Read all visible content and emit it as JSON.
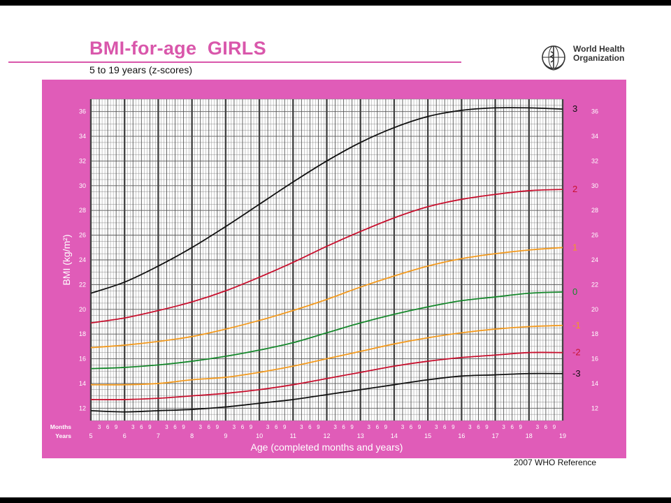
{
  "header": {
    "title": "BMI-for-age  GIRLS",
    "subtitle": "5 to 19 years (z-scores)",
    "org_line1": "World Health",
    "org_line2": "Organization"
  },
  "footer": {
    "reference": "2007 WHO Reference"
  },
  "colors": {
    "brand_pink": "#d957ab",
    "panel_pink": "#e05cb8",
    "z_black": "#111111",
    "z_red": "#c8102e",
    "z_orange": "#f39a1e",
    "z_green": "#16882c"
  },
  "chart_data": {
    "type": "line",
    "title": "BMI-for-age  GIRLS",
    "subtitle": "5 to 19 years (z-scores)",
    "xlabel": "Age (completed months and years)",
    "ylabel": "BMI (kg/m²)",
    "x_row_labels": {
      "months": "Months",
      "years": "Years"
    },
    "xlim": [
      5,
      19
    ],
    "ylim": [
      11,
      37
    ],
    "y_ticks": [
      12,
      14,
      16,
      18,
      20,
      22,
      24,
      26,
      28,
      30,
      32,
      34,
      36
    ],
    "year_ticks": [
      5,
      6,
      7,
      8,
      9,
      10,
      11,
      12,
      13,
      14,
      15,
      16,
      17,
      18,
      19
    ],
    "month_ticks": [
      "3",
      "6",
      "9"
    ],
    "grid": true,
    "x": [
      5,
      6,
      7,
      8,
      9,
      10,
      11,
      12,
      13,
      14,
      15,
      16,
      17,
      18,
      19
    ],
    "series": [
      {
        "name": "3",
        "color": "#111111",
        "values": [
          21.3,
          22.2,
          23.5,
          25.0,
          26.7,
          28.5,
          30.3,
          32.0,
          33.5,
          34.7,
          35.6,
          36.1,
          36.3,
          36.3,
          36.2
        ]
      },
      {
        "name": "2",
        "color": "#c8102e",
        "values": [
          18.9,
          19.3,
          19.9,
          20.6,
          21.5,
          22.6,
          23.8,
          25.1,
          26.3,
          27.4,
          28.3,
          28.9,
          29.3,
          29.6,
          29.7
        ]
      },
      {
        "name": "1",
        "color": "#f39a1e",
        "values": [
          16.9,
          17.1,
          17.4,
          17.8,
          18.4,
          19.1,
          19.9,
          20.8,
          21.8,
          22.7,
          23.5,
          24.1,
          24.5,
          24.8,
          25.0
        ]
      },
      {
        "name": "0",
        "color": "#16882c",
        "values": [
          15.2,
          15.3,
          15.5,
          15.8,
          16.2,
          16.7,
          17.3,
          18.1,
          18.9,
          19.6,
          20.2,
          20.7,
          21.0,
          21.3,
          21.4
        ]
      },
      {
        "name": "-1",
        "color": "#f39a1e",
        "values": [
          13.9,
          13.9,
          14.0,
          14.3,
          14.5,
          14.9,
          15.4,
          16.0,
          16.6,
          17.2,
          17.7,
          18.1,
          18.4,
          18.6,
          18.7
        ]
      },
      {
        "name": "-2",
        "color": "#c8102e",
        "values": [
          12.7,
          12.7,
          12.8,
          13.0,
          13.2,
          13.5,
          13.9,
          14.4,
          14.9,
          15.4,
          15.8,
          16.1,
          16.3,
          16.5,
          16.5
        ]
      },
      {
        "name": "-3",
        "color": "#111111",
        "values": [
          11.8,
          11.7,
          11.8,
          11.9,
          12.1,
          12.4,
          12.7,
          13.1,
          13.5,
          13.9,
          14.3,
          14.6,
          14.7,
          14.8,
          14.8
        ]
      }
    ]
  }
}
